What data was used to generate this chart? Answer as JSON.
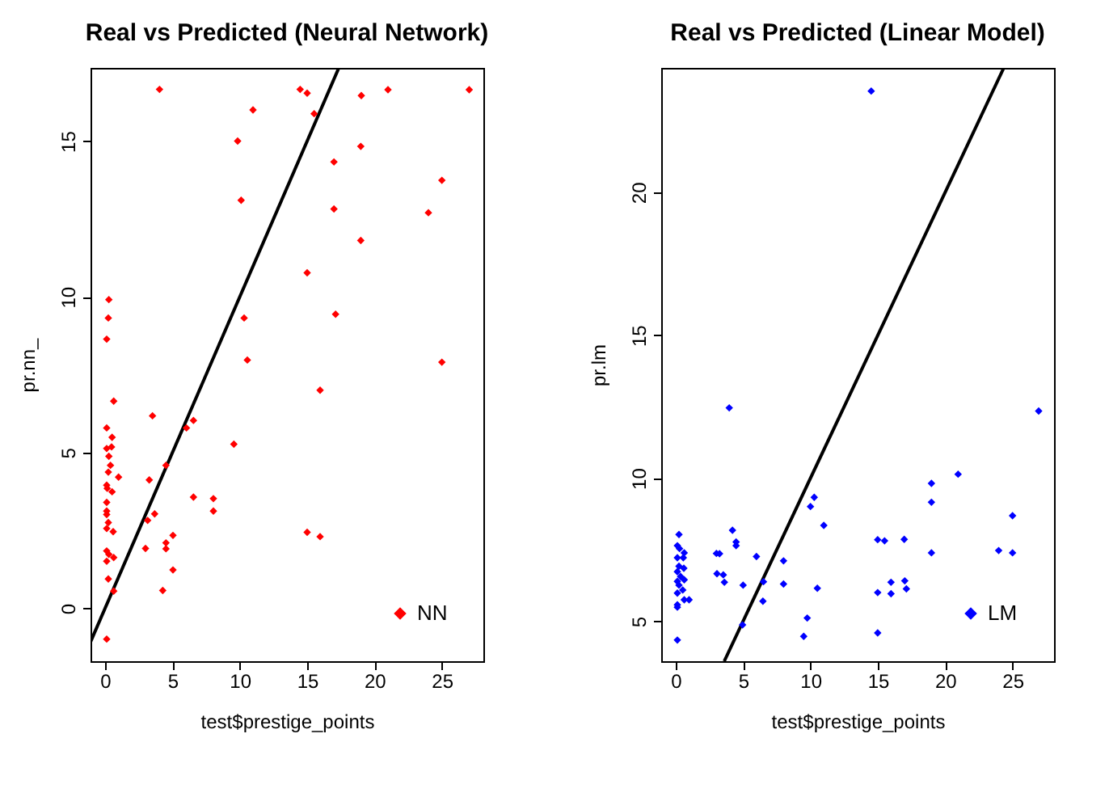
{
  "chart_data": [
    {
      "type": "scatter",
      "title": "Real vs Predicted (Neural Network)",
      "xlabel": "test$prestige_points",
      "ylabel": "pr.nn_",
      "xlim": [
        -1.08,
        28.08
      ],
      "ylim": [
        -1.7,
        17.35
      ],
      "xticks": [
        0,
        5,
        10,
        15,
        20,
        25
      ],
      "yticks": [
        0,
        5,
        10,
        15
      ],
      "legend": "bottom right",
      "series": [
        {
          "name": "NN",
          "color": "#ff0000",
          "marker": "diamond",
          "x": [
            4.04,
            9.84,
            10.1,
            10.98,
            0.28,
            0.24,
            0.12,
            0.64,
            3.52,
            6.04,
            6.56,
            0.12,
            0.52,
            0.12,
            0.48,
            0.28,
            0.4,
            0.24,
            1.0,
            3.28,
            4.52,
            9.56,
            0.12,
            0.16,
            0.52,
            0.12,
            0.12,
            0.12,
            3.68,
            6.56,
            8.04,
            8.04,
            0.24,
            3.16,
            0.12,
            0.6,
            3.0,
            4.52,
            4.52,
            5.04,
            0.12,
            0.28,
            0.64,
            0.12,
            0.24,
            5.04,
            0.64,
            4.28,
            0.12,
            10.32,
            10.56,
            14.48,
            15.0,
            19.02,
            21.0,
            27.03,
            15.52,
            18.98,
            16.99,
            25.0,
            16.99,
            24.0,
            18.98,
            15.0,
            17.11,
            25.0,
            15.96,
            15.0,
            15.96
          ],
          "values": [
            16.66,
            15.0,
            13.1,
            16.0,
            9.91,
            9.32,
            8.64,
            6.65,
            6.18,
            5.79,
            6.03,
            5.79,
            5.49,
            5.13,
            5.18,
            4.88,
            4.59,
            4.37,
            4.21,
            4.12,
            4.59,
            5.27,
            3.95,
            3.85,
            3.74,
            3.4,
            3.12,
            3.01,
            3.03,
            3.57,
            3.52,
            3.12,
            2.75,
            2.82,
            2.56,
            2.46,
            1.92,
            2.1,
            1.91,
            2.34,
            1.84,
            1.73,
            1.63,
            1.51,
            0.94,
            1.23,
            0.55,
            0.57,
            -0.99,
            9.32,
            7.97,
            16.66,
            16.54,
            16.46,
            16.65,
            16.65,
            15.88,
            14.83,
            14.33,
            13.74,
            12.82,
            12.7,
            11.81,
            10.77,
            9.44,
            7.9,
            7.0,
            2.44,
            2.3
          ]
        },
        {
          "type": "line",
          "color": "#000000",
          "marker": "none",
          "x": [
            -1.08,
            17.35
          ],
          "values": [
            -1.08,
            17.35
          ]
        }
      ]
    },
    {
      "type": "scatter",
      "title": "Real vs Predicted (Linear Model)",
      "xlabel": "test$prestige_points",
      "ylabel": "pr.lm",
      "xlim": [
        -1.08,
        28.08
      ],
      "ylim": [
        3.6,
        24.35
      ],
      "xticks": [
        0,
        5,
        10,
        15,
        20,
        25
      ],
      "yticks": [
        5,
        10,
        15,
        20
      ],
      "legend": "bottom right",
      "series": [
        {
          "name": "LM",
          "color": "#0000ff",
          "marker": "diamond",
          "x": [
            3.97,
            0.24,
            0.12,
            0.28,
            0.63,
            0.56,
            0.12,
            0.24,
            0.6,
            0.12,
            0.36,
            0.63,
            0.12,
            0.24,
            0.52,
            0.12,
            0.63,
            0.99,
            0.12,
            0.12,
            0.12,
            3.02,
            3.25,
            3.06,
            3.53,
            3.61,
            4.21,
            4.48,
            4.48,
            5.0,
            4.96,
            5.99,
            6.51,
            6.47,
            8.0,
            8.0,
            9.5,
            14.51,
            26.94,
            20.96,
            18.98,
            18.98,
            10.28,
            10.0,
            10.99,
            25.0,
            14.99,
            15.5,
            16.96,
            18.98,
            23.97,
            25.0,
            10.51,
            14.99,
            15.98,
            15.98,
            17.0,
            17.12,
            9.76,
            14.99
          ],
          "values": [
            12.46,
            8.03,
            7.64,
            7.54,
            7.39,
            7.22,
            7.22,
            6.92,
            6.85,
            6.73,
            6.56,
            6.45,
            6.39,
            6.26,
            6.09,
            5.98,
            5.75,
            5.75,
            5.57,
            5.49,
            4.34,
            7.37,
            7.36,
            6.66,
            6.62,
            6.36,
            8.18,
            7.77,
            7.64,
            6.26,
            4.87,
            7.26,
            6.38,
            5.7,
            7.11,
            6.3,
            4.47,
            23.54,
            12.35,
            10.14,
            9.82,
            9.16,
            9.33,
            9.01,
            8.35,
            8.69,
            7.85,
            7.81,
            7.86,
            7.39,
            7.47,
            7.39,
            6.15,
            6.0,
            6.36,
            5.96,
            6.41,
            6.13,
            5.11,
            4.59
          ]
        },
        {
          "type": "line",
          "color": "#000000",
          "marker": "none",
          "x": [
            3.6,
            24.35
          ],
          "values": [
            3.6,
            24.35
          ]
        }
      ]
    }
  ]
}
